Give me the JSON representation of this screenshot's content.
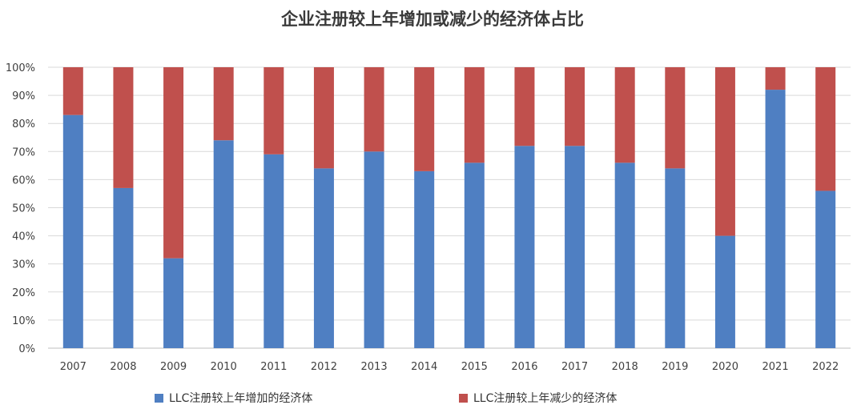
{
  "chart_data": {
    "type": "bar",
    "stacked": true,
    "title": "企业注册较上年增加或减少的经济体占比",
    "categories": [
      "2007",
      "2008",
      "2009",
      "2010",
      "2011",
      "2012",
      "2013",
      "2014",
      "2015",
      "2016",
      "2017",
      "2018",
      "2019",
      "2020",
      "2021",
      "2022"
    ],
    "series": [
      {
        "name": "LLC注册较上年增加的经济体",
        "color": "#4f7fc2",
        "values": [
          83,
          57,
          32,
          74,
          69,
          64,
          70,
          63,
          66,
          72,
          72,
          66,
          64,
          40,
          92,
          56
        ]
      },
      {
        "name": "LLC注册较上年减少的经济体",
        "color": "#c0504d",
        "values": [
          17,
          43,
          68,
          26,
          31,
          36,
          30,
          37,
          34,
          28,
          28,
          34,
          36,
          60,
          8,
          44
        ]
      }
    ],
    "y_ticks": [
      "0%",
      "10%",
      "20%",
      "30%",
      "40%",
      "50%",
      "60%",
      "70%",
      "80%",
      "90%",
      "100%"
    ],
    "ylim": [
      0,
      100
    ],
    "y_unit": "%",
    "grid": true,
    "legend_position": "bottom",
    "gridline_color": "#d9d9d9",
    "axis_color": "#bfbfbf"
  }
}
